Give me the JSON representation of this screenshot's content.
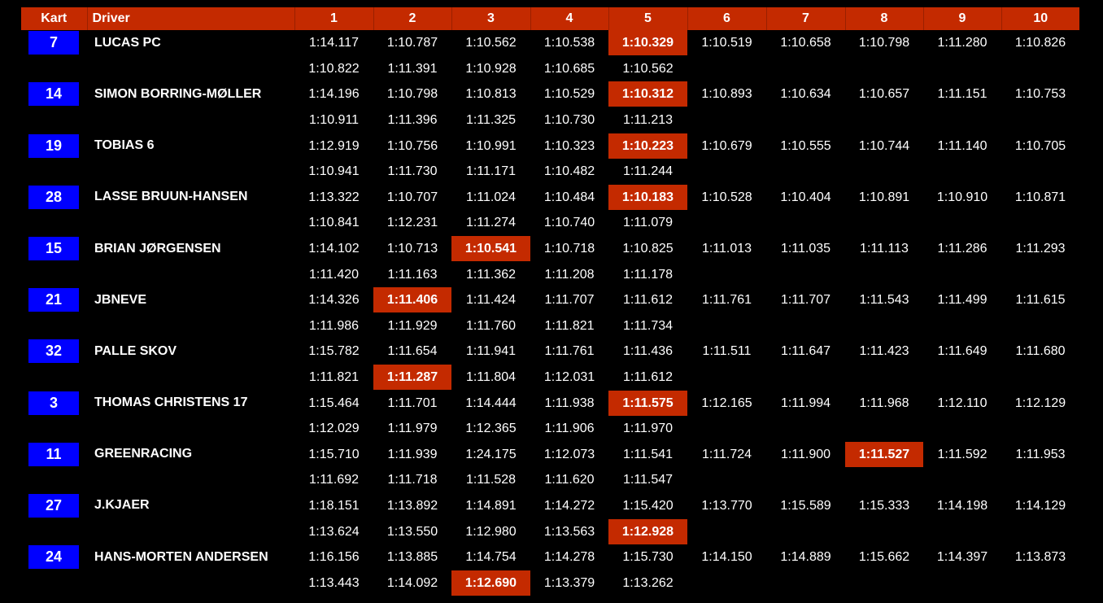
{
  "header": {
    "kart": "Kart",
    "driver": "Driver",
    "laps": [
      "1",
      "2",
      "3",
      "4",
      "5",
      "6",
      "7",
      "8",
      "9",
      "10"
    ]
  },
  "colors": {
    "header_bg": "#c42a00",
    "best_lap_bg": "#c42a00",
    "kart_bg": "#0000ff",
    "background": "#000000"
  },
  "drivers": [
    {
      "kart": "7",
      "name": "LUCAS PC",
      "row1": [
        "1:14.117",
        "1:10.787",
        "1:10.562",
        "1:10.538",
        "1:10.329",
        "1:10.519",
        "1:10.658",
        "1:10.798",
        "1:11.280",
        "1:10.826"
      ],
      "row2": [
        "1:10.822",
        "1:11.391",
        "1:10.928",
        "1:10.685",
        "1:10.562"
      ],
      "best": {
        "row": 1,
        "lap": 5
      }
    },
    {
      "kart": "14",
      "name": "SIMON BORRING-MØLLER",
      "row1": [
        "1:14.196",
        "1:10.798",
        "1:10.813",
        "1:10.529",
        "1:10.312",
        "1:10.893",
        "1:10.634",
        "1:10.657",
        "1:11.151",
        "1:10.753"
      ],
      "row2": [
        "1:10.911",
        "1:11.396",
        "1:11.325",
        "1:10.730",
        "1:11.213"
      ],
      "best": {
        "row": 1,
        "lap": 5
      }
    },
    {
      "kart": "19",
      "name": "TOBIAS 6",
      "row1": [
        "1:12.919",
        "1:10.756",
        "1:10.991",
        "1:10.323",
        "1:10.223",
        "1:10.679",
        "1:10.555",
        "1:10.744",
        "1:11.140",
        "1:10.705"
      ],
      "row2": [
        "1:10.941",
        "1:11.730",
        "1:11.171",
        "1:10.482",
        "1:11.244"
      ],
      "best": {
        "row": 1,
        "lap": 5
      }
    },
    {
      "kart": "28",
      "name": "LASSE BRUUN-HANSEN",
      "row1": [
        "1:13.322",
        "1:10.707",
        "1:11.024",
        "1:10.484",
        "1:10.183",
        "1:10.528",
        "1:10.404",
        "1:10.891",
        "1:10.910",
        "1:10.871"
      ],
      "row2": [
        "1:10.841",
        "1:12.231",
        "1:11.274",
        "1:10.740",
        "1:11.079"
      ],
      "best": {
        "row": 1,
        "lap": 5
      }
    },
    {
      "kart": "15",
      "name": "BRIAN JØRGENSEN",
      "row1": [
        "1:14.102",
        "1:10.713",
        "1:10.541",
        "1:10.718",
        "1:10.825",
        "1:11.013",
        "1:11.035",
        "1:11.113",
        "1:11.286",
        "1:11.293"
      ],
      "row2": [
        "1:11.420",
        "1:11.163",
        "1:11.362",
        "1:11.208",
        "1:11.178"
      ],
      "best": {
        "row": 1,
        "lap": 3
      }
    },
    {
      "kart": "21",
      "name": "JBNEVE",
      "row1": [
        "1:14.326",
        "1:11.406",
        "1:11.424",
        "1:11.707",
        "1:11.612",
        "1:11.761",
        "1:11.707",
        "1:11.543",
        "1:11.499",
        "1:11.615"
      ],
      "row2": [
        "1:11.986",
        "1:11.929",
        "1:11.760",
        "1:11.821",
        "1:11.734"
      ],
      "best": {
        "row": 1,
        "lap": 2
      }
    },
    {
      "kart": "32",
      "name": "PALLE SKOV",
      "row1": [
        "1:15.782",
        "1:11.654",
        "1:11.941",
        "1:11.761",
        "1:11.436",
        "1:11.511",
        "1:11.647",
        "1:11.423",
        "1:11.649",
        "1:11.680"
      ],
      "row2": [
        "1:11.821",
        "1:11.287",
        "1:11.804",
        "1:12.031",
        "1:11.612"
      ],
      "best": {
        "row": 2,
        "lap": 2
      }
    },
    {
      "kart": "3",
      "name": "THOMAS CHRISTENS 17",
      "row1": [
        "1:15.464",
        "1:11.701",
        "1:14.444",
        "1:11.938",
        "1:11.575",
        "1:12.165",
        "1:11.994",
        "1:11.968",
        "1:12.110",
        "1:12.129"
      ],
      "row2": [
        "1:12.029",
        "1:11.979",
        "1:12.365",
        "1:11.906",
        "1:11.970"
      ],
      "best": {
        "row": 1,
        "lap": 5
      }
    },
    {
      "kart": "11",
      "name": "GREENRACING",
      "row1": [
        "1:15.710",
        "1:11.939",
        "1:24.175",
        "1:12.073",
        "1:11.541",
        "1:11.724",
        "1:11.900",
        "1:11.527",
        "1:11.592",
        "1:11.953"
      ],
      "row2": [
        "1:11.692",
        "1:11.718",
        "1:11.528",
        "1:11.620",
        "1:11.547"
      ],
      "best": {
        "row": 1,
        "lap": 8
      }
    },
    {
      "kart": "27",
      "name": "J.KJAER",
      "row1": [
        "1:18.151",
        "1:13.892",
        "1:14.891",
        "1:14.272",
        "1:15.420",
        "1:13.770",
        "1:15.589",
        "1:15.333",
        "1:14.198",
        "1:14.129"
      ],
      "row2": [
        "1:13.624",
        "1:13.550",
        "1:12.980",
        "1:13.563",
        "1:12.928"
      ],
      "best": {
        "row": 2,
        "lap": 5
      }
    },
    {
      "kart": "24",
      "name": "HANS-MORTEN ANDERSEN",
      "row1": [
        "1:16.156",
        "1:13.885",
        "1:14.754",
        "1:14.278",
        "1:15.730",
        "1:14.150",
        "1:14.889",
        "1:15.662",
        "1:14.397",
        "1:13.873"
      ],
      "row2": [
        "1:13.443",
        "1:14.092",
        "1:12.690",
        "1:13.379",
        "1:13.262"
      ],
      "best": {
        "row": 2,
        "lap": 3
      }
    }
  ]
}
